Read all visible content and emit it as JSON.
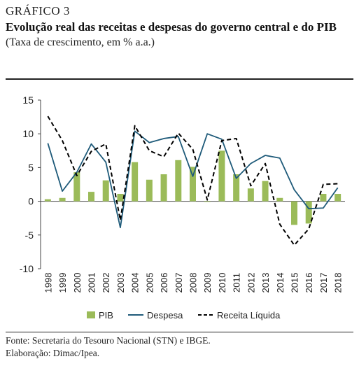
{
  "header": {
    "figure_label": "GRÁFICO 3",
    "title": "Evolução real das receitas e despesas do governo central e do PIB",
    "subtitle": "(Taxa de crescimento, em % a.a.)"
  },
  "footer": {
    "source": "Fonte: Secretaria do Tesouro Nacional (STN) e IBGE.",
    "credit": "Elaboração: Dimac/Ipea."
  },
  "chart_data": {
    "type": "bar",
    "categories": [
      "1998",
      "1999",
      "2000",
      "2001",
      "2002",
      "2003",
      "2004",
      "2005",
      "2006",
      "2007",
      "2008",
      "2009",
      "2010",
      "2011",
      "2012",
      "2013",
      "2014",
      "2015",
      "2016",
      "2017",
      "2018"
    ],
    "ylim": [
      -10,
      15
    ],
    "yticks": [
      -10,
      -5,
      0,
      5,
      10,
      15
    ],
    "legend_position": "bottom",
    "grid": false,
    "series": [
      {
        "name": "PIB",
        "kind": "bar",
        "color": "#9bbb59",
        "values": [
          0.3,
          0.5,
          4.3,
          1.4,
          3.1,
          1.1,
          5.8,
          3.2,
          4.0,
          6.1,
          5.1,
          -0.1,
          7.5,
          4.0,
          1.9,
          3.0,
          0.5,
          -3.5,
          -3.3,
          1.1,
          1.1
        ]
      },
      {
        "name": "Despesa",
        "kind": "line",
        "color": "#1f5b7a",
        "dash": "solid",
        "values": [
          8.6,
          1.5,
          4.3,
          8.5,
          5.8,
          -3.9,
          10.4,
          8.7,
          9.3,
          9.6,
          3.7,
          10.0,
          9.2,
          3.4,
          5.6,
          6.8,
          6.4,
          1.7,
          -1.1,
          -1.0,
          2.0
        ]
      },
      {
        "name": "Receita Líquida",
        "kind": "line",
        "color": "#000000",
        "dash": "dashed",
        "values": [
          12.6,
          9.0,
          3.8,
          7.4,
          8.5,
          -2.8,
          11.2,
          7.5,
          6.6,
          10.1,
          7.7,
          0.2,
          9.0,
          9.3,
          2.3,
          5.6,
          -3.4,
          -6.5,
          -4.1,
          2.5,
          2.6
        ]
      }
    ]
  }
}
